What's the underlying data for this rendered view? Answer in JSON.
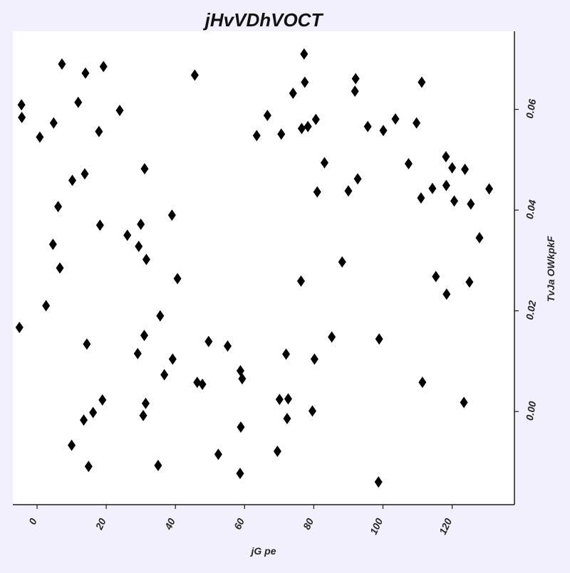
{
  "chart_data": {
    "type": "scatter",
    "title": "jHvVDhVOCT",
    "xlabel": "jG pe",
    "ylabel": "TvJa OWkpkF",
    "xlim": [
      -7,
      138
    ],
    "ylim": [
      -0.0185,
      0.0755
    ],
    "xticks": [
      0,
      20,
      40,
      60,
      80,
      100,
      120
    ],
    "xtick_labels": [
      "0",
      "20",
      "40",
      "60",
      "80",
      "100",
      "120"
    ],
    "yticks": [
      0.0,
      0.02,
      0.04,
      0.06
    ],
    "ytick_labels": [
      "0.00",
      "0.02",
      "0.04",
      "0.06"
    ],
    "y_axis_side": "right",
    "grid": false,
    "marker": "diamond",
    "colors": {
      "page_background": "#f2f0fc",
      "plot_background": "#ffffff",
      "marker": "#000000",
      "axis": "#1a1a1a",
      "text": "#262626"
    },
    "x": [
      -5.1,
      -4.5,
      -4.4,
      0.8,
      2.6,
      4.6,
      4.8,
      6.1,
      6.6,
      7.2,
      10.0,
      10.2,
      11.9,
      13.5,
      13.8,
      14.0,
      14.4,
      14.9,
      16.2,
      17.9,
      18.2,
      18.9,
      19.2,
      23.9,
      26.1,
      29.1,
      29.4,
      30.0,
      30.7,
      31.0,
      31.1,
      31.4,
      31.6,
      35.0,
      35.6,
      36.8,
      39.0,
      39.2,
      40.6,
      45.6,
      46.3,
      47.8,
      49.6,
      52.4,
      55.1,
      58.7,
      58.8,
      58.9,
      59.3,
      63.5,
      66.6,
      69.5,
      70.1,
      70.6,
      72.0,
      72.3,
      72.6,
      74.0,
      76.3,
      76.5,
      77.2,
      77.4,
      78.3,
      79.6,
      80.2,
      80.6,
      81.0,
      83.1,
      85.2,
      88.2,
      90.0,
      91.9,
      92.1,
      92.7,
      95.6,
      98.7,
      98.9,
      100.1,
      103.6,
      107.4,
      109.7,
      111.0,
      111.2,
      111.4,
      114.3,
      115.3,
      118.2,
      118.3,
      118.4,
      120.0,
      120.6,
      123.4,
      123.7,
      125.0,
      125.4,
      127.9,
      130.7
    ],
    "y": [
      0.0167,
      0.0609,
      0.0584,
      0.0545,
      0.021,
      0.0332,
      0.0573,
      0.0407,
      0.0285,
      0.069,
      -0.0067,
      0.0459,
      0.0614,
      -0.0017,
      0.0472,
      0.0672,
      0.0134,
      -0.0109,
      -0.0002,
      0.0556,
      0.037,
      0.0023,
      0.0685,
      0.0598,
      0.035,
      0.0115,
      0.0328,
      0.0372,
      -0.0008,
      0.0151,
      0.0482,
      0.0016,
      0.0302,
      -0.0107,
      0.019,
      0.0073,
      0.039,
      0.0104,
      0.0264,
      0.0668,
      0.0058,
      0.0054,
      0.0139,
      -0.0085,
      0.013,
      -0.0123,
      0.0081,
      -0.0031,
      0.0065,
      0.0548,
      0.0588,
      -0.0079,
      0.0024,
      0.0551,
      0.0114,
      -0.0014,
      0.0025,
      0.0632,
      0.0259,
      0.0562,
      0.071,
      0.0654,
      0.0566,
      0.0001,
      0.0104,
      0.058,
      0.0436,
      0.0494,
      0.0148,
      0.0297,
      0.0438,
      0.0636,
      0.0661,
      0.0462,
      0.0566,
      -0.014,
      0.0144,
      0.0558,
      0.0581,
      0.0492,
      0.0573,
      0.0424,
      0.0654,
      0.0058,
      0.0443,
      0.0268,
      0.0506,
      0.0449,
      0.0233,
      0.0484,
      0.0418,
      0.0018,
      0.0481,
      0.0257,
      0.0412,
      0.0345,
      0.0442
    ]
  }
}
